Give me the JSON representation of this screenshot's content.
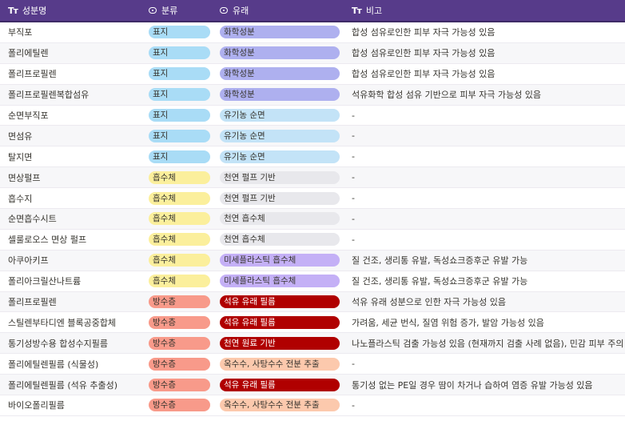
{
  "header": {
    "name_label": "성분명",
    "category_label": "분류",
    "origin_label": "유래",
    "note_label": "비고",
    "header_bg": "#573b8a",
    "text_icon": "Tт",
    "select_icon": "select-icon"
  },
  "tag_colors": {
    "표지": {
      "bg": "#a9dcf6",
      "fg": "#37352f"
    },
    "흡수체": {
      "bg": "#fbef9c",
      "fg": "#37352f"
    },
    "방수층": {
      "bg": "#f89a8a",
      "fg": "#37352f"
    },
    "화학성분": {
      "bg": "#aeb0ef",
      "fg": "#37352f"
    },
    "유기농 순면": {
      "bg": "#c3e3f7",
      "fg": "#37352f"
    },
    "천연 펄프 기반": {
      "bg": "#e8e8ec",
      "fg": "#37352f"
    },
    "천연 흡수체": {
      "bg": "#e8e8ec",
      "fg": "#37352f"
    },
    "미세플라스틱 흡수체": {
      "bg": "#c4b0f6",
      "fg": "#37352f"
    },
    "석유 유래 필름": {
      "bg": "#b00000",
      "fg": "#ffffff"
    },
    "천연 원료 기반": {
      "bg": "#b00000",
      "fg": "#ffffff"
    },
    "옥수수, 사탕수수 전분 추출": {
      "bg": "#fcc9ad",
      "fg": "#37352f"
    }
  },
  "rows": [
    {
      "name": "부직포",
      "category": "표지",
      "origin": "화학성분",
      "note": "합성 섬유로인한 피부 자극 가능성 있음"
    },
    {
      "name": "폴리에틸렌",
      "category": "표지",
      "origin": "화학성분",
      "note": "합성 섬유로인한 피부 자극 가능성 있음"
    },
    {
      "name": "폴리프로필렌",
      "category": "표지",
      "origin": "화학성분",
      "note": "합성 섬유로인한 피부 자극 가능성 있음"
    },
    {
      "name": "폴리프로필렌복합섬유",
      "category": "표지",
      "origin": "화학성분",
      "note": "석유화학 합성 섬유 기반으로 피부 자극 가능성 있음"
    },
    {
      "name": "순면부직포",
      "category": "표지",
      "origin": "유기농 순면",
      "note": "-"
    },
    {
      "name": "면섬유",
      "category": "표지",
      "origin": "유기농 순면",
      "note": "-"
    },
    {
      "name": "탈지면",
      "category": "표지",
      "origin": "유기농 순면",
      "note": "-"
    },
    {
      "name": "면상펄프",
      "category": "흡수체",
      "origin": "천연 펄프 기반",
      "note": "-"
    },
    {
      "name": "흡수지",
      "category": "흡수체",
      "origin": "천연 펄프 기반",
      "note": "-"
    },
    {
      "name": "순면흡수시트",
      "category": "흡수체",
      "origin": "천연 흡수체",
      "note": "-"
    },
    {
      "name": "셀룰로오스 면상 펄프",
      "category": "흡수체",
      "origin": "천연 흡수체",
      "note": "-"
    },
    {
      "name": "아쿠아키프",
      "category": "흡수체",
      "origin": "미세플라스틱 흡수체",
      "note": "질 건조, 생리통 유발, 독성쇼크증후군 유발 가능"
    },
    {
      "name": "폴리아크릴산나트륨",
      "category": "흡수체",
      "origin": "미세플라스틱 흡수체",
      "note": "질 건조, 생리통 유발, 독성쇼크증후군 유발 가능"
    },
    {
      "name": "폴리프로필렌",
      "category": "방수층",
      "origin": "석유 유래 필름",
      "note": "석유 유래 성분으로 인한 자극 가능성 있음"
    },
    {
      "name": "스틸렌부타디엔 블록공중합체",
      "category": "방수층",
      "origin": "석유 유래 필름",
      "note": "가려움, 세균 번식, 질염 위험 증가, 발암 가능성 있음"
    },
    {
      "name": "통기성방수용 합성수지필름",
      "category": "방수층",
      "origin": "천연 원료 기반",
      "note": "나노플라스틱 검출 가능성 있음 (현재까지 검출 사례 없음), 민감 피부 주의"
    },
    {
      "name": "폴리에틸렌필름 (식물성)",
      "category": "방수층",
      "origin": "옥수수, 사탕수수 전분 추출",
      "note": "-"
    },
    {
      "name": "폴리에틸렌필름 (석유 추출성)",
      "category": "방수층",
      "origin": "석유 유래 필름",
      "note": "통기성 없는 PE일 경우 땀이 차거나 습하여 염증 유발 가능성 있음"
    },
    {
      "name": "바이오폴리필름",
      "category": "방수층",
      "origin": "옥수수, 사탕수수 전분 추출",
      "note": "-"
    }
  ]
}
